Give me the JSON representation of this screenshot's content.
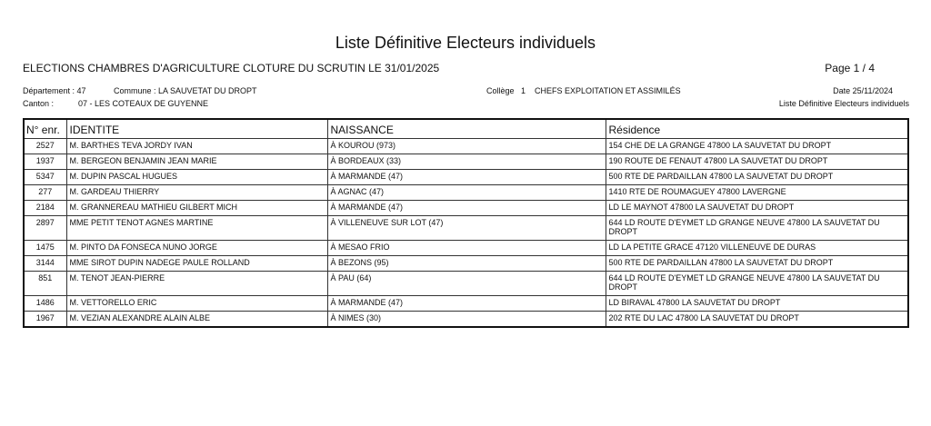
{
  "title": "Liste Définitive Electeurs individuels",
  "subtitle": "ELECTIONS CHAMBRES D'AGRICULTURE CLOTURE DU SCRUTIN LE  31/01/2025",
  "page": "Page 1 / 4",
  "departement": "Département : 47",
  "commune": "Commune : LA SAUVETAT DU DROPT",
  "canton_label": "Canton :",
  "canton": "07 - LES COTEAUX DE GUYENNE",
  "college": "Collège   1    CHEFS EXPLOITATION ET ASSIMILÉS",
  "date": "Date  25/11/2024",
  "list_type": "Liste Définitive Electeurs individuels",
  "columns": [
    "N° enr.",
    "IDENTITE",
    "NAISSANCE",
    "Résidence"
  ],
  "rows": [
    [
      "2527",
      "M. BARTHES TEVA JORDY IVAN",
      "À KOUROU (973)",
      "154 CHE DE LA GRANGE 47800 LA SAUVETAT DU DROPT"
    ],
    [
      "1937",
      "M. BERGEON BENJAMIN JEAN MARIE",
      "À BORDEAUX (33)",
      "190 ROUTE DE FENAUT 47800 LA SAUVETAT DU DROPT"
    ],
    [
      "5347",
      "M. DUPIN PASCAL HUGUES",
      "À MARMANDE (47)",
      "500 RTE DE PARDAILLAN 47800 LA SAUVETAT DU DROPT"
    ],
    [
      "277",
      "M. GARDEAU THIERRY",
      "À AGNAC (47)",
      "1410 RTE DE ROUMAGUEY 47800 LAVERGNE"
    ],
    [
      "2184",
      "M. GRANNEREAU MATHIEU GILBERT MICH",
      "À MARMANDE (47)",
      "LD LE MAYNOT 47800 LA SAUVETAT DU DROPT"
    ],
    [
      "2897",
      "MME PETIT TENOT AGNES MARTINE",
      "À VILLENEUVE SUR LOT (47)",
      "644 LD ROUTE D'EYMET LD GRANGE NEUVE 47800 LA SAUVETAT DU DROPT"
    ],
    [
      "1475",
      "M. PINTO DA FONSECA NUNO JORGE",
      "À MESAO FRIO",
      "LD LA PETITE GRACE 47120 VILLENEUVE DE DURAS"
    ],
    [
      "3144",
      "MME SIROT DUPIN NADEGE PAULE ROLLAND",
      "À BEZONS (95)",
      "500 RTE DE PARDAILLAN 47800 LA SAUVETAT DU DROPT"
    ],
    [
      "851",
      "M. TENOT JEAN-PIERRE",
      "À PAU (64)",
      "644 LD ROUTE D'EYMET LD GRANGE NEUVE 47800 LA SAUVETAT DU DROPT"
    ],
    [
      "1486",
      "M. VETTORELLO ERIC",
      "À MARMANDE (47)",
      "LD BIRAVAL 47800 LA SAUVETAT DU DROPT"
    ],
    [
      "1967",
      "M. VEZIAN ALEXANDRE ALAIN ALBE",
      "À NIMES (30)",
      "202 RTE DU LAC 47800 LA SAUVETAT DU DROPT"
    ]
  ]
}
